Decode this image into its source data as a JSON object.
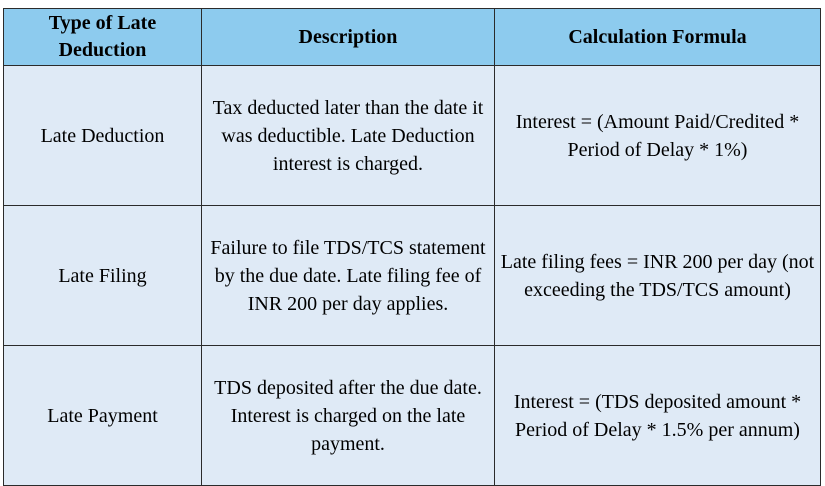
{
  "table": {
    "headers": [
      "Type of Late Deduction",
      "Description",
      "Calculation Formula"
    ],
    "rows": [
      {
        "type": "Late Deduction",
        "description": "Tax deducted later than the date it was deductible. Late Deduction interest is charged.",
        "formula": "Interest = (Amount Paid/Credited * Period of Delay * 1%)"
      },
      {
        "type": "Late Filing",
        "description": "Failure to file TDS/TCS statement by the due date. Late filing fee of INR 200 per day applies.",
        "formula": "Late filing fees = INR 200 per day (not exceeding the TDS/TCS amount)"
      },
      {
        "type": "Late Payment",
        "description": "TDS deposited after the due date. Interest is charged on the late payment.",
        "formula": "Interest = (TDS deposited amount * Period of Delay * 1.5% per annum)"
      }
    ]
  },
  "colors": {
    "header_bg": "#8dcbee",
    "cell_bg": "#dfeaf6",
    "border": "#2b2b2b"
  }
}
